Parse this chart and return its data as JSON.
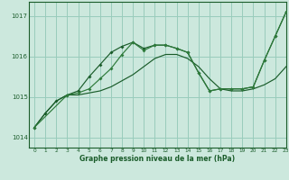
{
  "bg_color": "#cce8dd",
  "grid_color": "#99ccbb",
  "line_color_dark": "#1a5c2a",
  "line_color_mid": "#2d7a3a",
  "xlabel": "Graphe pression niveau de la mer (hPa)",
  "xlim": [
    -0.5,
    23
  ],
  "ylim": [
    1013.75,
    1017.35
  ],
  "yticks": [
    1014,
    1015,
    1016,
    1017
  ],
  "xticks": [
    0,
    1,
    2,
    3,
    4,
    5,
    6,
    7,
    8,
    9,
    10,
    11,
    12,
    13,
    14,
    15,
    16,
    17,
    18,
    19,
    20,
    21,
    22,
    23
  ],
  "series1": [
    1014.25,
    1014.6,
    1014.9,
    1015.05,
    1015.05,
    1015.1,
    1015.15,
    1015.25,
    1015.4,
    1015.55,
    1015.75,
    1015.95,
    1016.05,
    1016.05,
    1015.95,
    1015.75,
    1015.45,
    1015.2,
    1015.15,
    1015.15,
    1015.2,
    1015.3,
    1015.45,
    1015.75
  ],
  "series2_x": [
    0,
    1,
    2,
    3,
    4,
    5,
    6,
    7,
    8,
    9,
    10,
    11,
    12,
    13,
    14,
    15,
    16,
    17,
    18,
    19,
    20,
    21,
    22,
    23
  ],
  "series2": [
    1014.25,
    1014.6,
    1014.9,
    1015.05,
    1015.15,
    1015.5,
    1015.8,
    1016.1,
    1016.25,
    1016.35,
    1016.2,
    1016.28,
    1016.28,
    1016.2,
    1016.1,
    1015.6,
    1015.15,
    1015.2,
    1015.2,
    1015.2,
    1015.25,
    1015.9,
    1016.5,
    1017.1
  ],
  "series3_x": [
    0,
    3,
    4,
    5,
    6,
    7,
    8,
    9,
    10,
    11,
    12,
    13,
    14,
    15,
    16,
    17,
    18,
    19,
    20,
    21,
    22,
    23
  ],
  "series3": [
    1014.25,
    1015.05,
    1015.1,
    1015.2,
    1015.45,
    1015.7,
    1016.05,
    1016.35,
    1016.15,
    1016.28,
    1016.28,
    1016.2,
    1016.1,
    1015.6,
    1015.15,
    1015.2,
    1015.2,
    1015.2,
    1015.25,
    1015.9,
    1016.5,
    1017.1
  ]
}
